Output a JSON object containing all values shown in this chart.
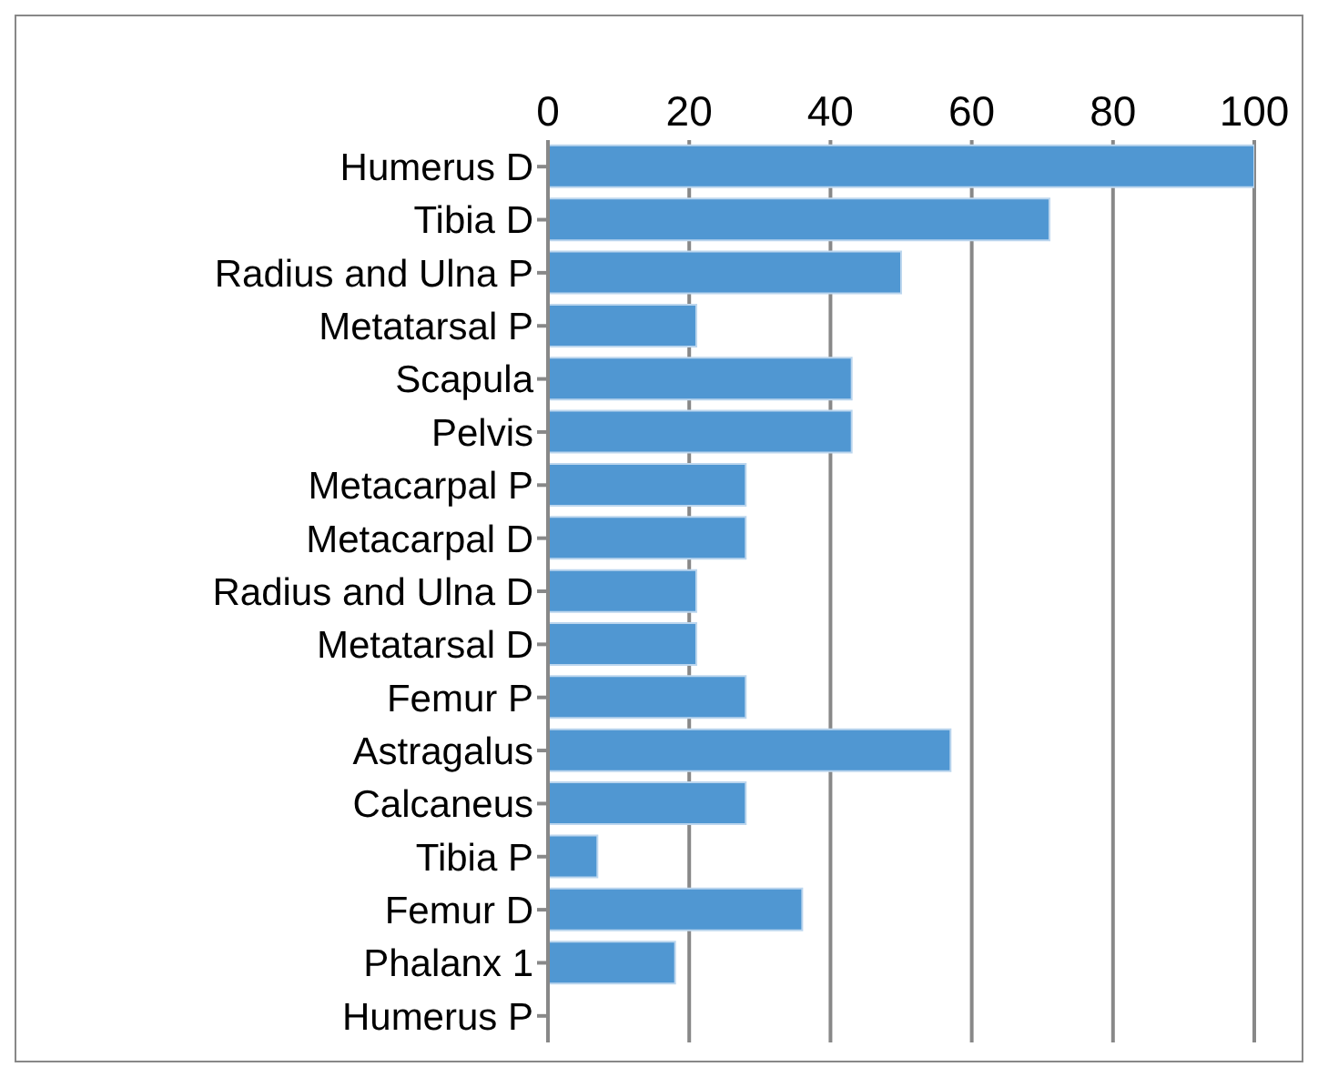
{
  "chart_data": {
    "type": "bar",
    "orientation": "horizontal",
    "categories": [
      "Humerus D",
      "Tibia D",
      "Radius and Ulna P",
      "Metatarsal P",
      "Scapula",
      "Pelvis",
      "Metacarpal P",
      "Metacarpal D",
      "Radius and Ulna D",
      "Metatarsal D",
      "Femur P",
      "Astragalus",
      "Calcaneus",
      "Tibia P",
      "Femur D",
      "Phalanx 1",
      "Humerus P"
    ],
    "values": [
      100,
      71,
      50,
      21,
      43,
      43,
      28,
      28,
      21,
      21,
      28,
      57,
      28,
      7,
      36,
      18,
      0
    ],
    "color": "#5097d2",
    "xlim": [
      0,
      100
    ],
    "xticks": [
      0,
      20,
      40,
      60,
      80,
      100
    ],
    "grid": "x"
  }
}
